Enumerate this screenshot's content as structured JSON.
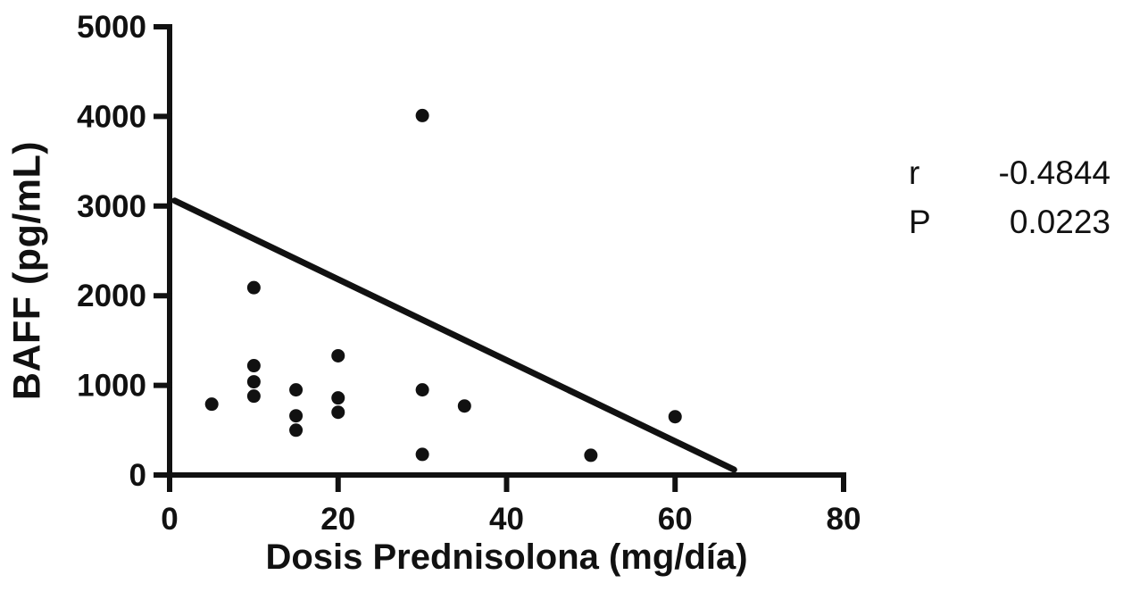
{
  "chart_data": {
    "type": "scatter",
    "xlabel": "Dosis Prednisolona (mg/día)",
    "ylabel": "BAFF (pg/mL)",
    "xlim": [
      0,
      80
    ],
    "ylim": [
      0,
      5000
    ],
    "x_ticks": [
      0,
      20,
      40,
      60,
      80
    ],
    "y_ticks": [
      0,
      1000,
      2000,
      3000,
      4000,
      5000
    ],
    "grid": false,
    "legend": "none",
    "points": [
      {
        "x": 5,
        "y": 790
      },
      {
        "x": 10,
        "y": 2090
      },
      {
        "x": 10,
        "y": 1220
      },
      {
        "x": 10,
        "y": 1040
      },
      {
        "x": 10,
        "y": 880
      },
      {
        "x": 15,
        "y": 950
      },
      {
        "x": 15,
        "y": 660
      },
      {
        "x": 15,
        "y": 500
      },
      {
        "x": 20,
        "y": 1330
      },
      {
        "x": 20,
        "y": 860
      },
      {
        "x": 20,
        "y": 700
      },
      {
        "x": 30,
        "y": 4010
      },
      {
        "x": 30,
        "y": 950
      },
      {
        "x": 30,
        "y": 230
      },
      {
        "x": 35,
        "y": 770
      },
      {
        "x": 50,
        "y": 220
      },
      {
        "x": 60,
        "y": 650
      }
    ],
    "trendline": {
      "x1": 0.6,
      "y1": 3060,
      "x2": 67,
      "y2": 60
    },
    "stats": [
      {
        "label": "r",
        "value": "-0.4844"
      },
      {
        "label": "P",
        "value": "0.0223"
      }
    ],
    "colors": {
      "point": "#111111",
      "line": "#111111",
      "axis": "#111111",
      "background": "#ffffff"
    }
  }
}
